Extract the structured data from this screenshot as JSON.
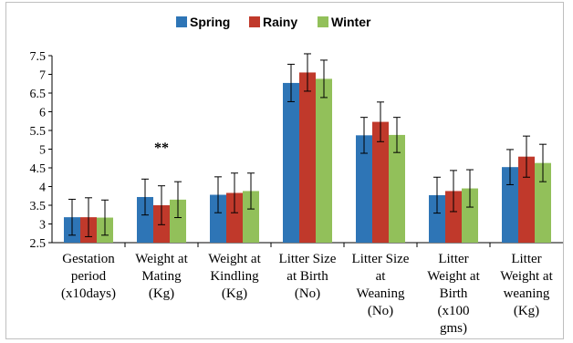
{
  "chart_data": {
    "type": "bar",
    "categories": [
      [
        "Gestation",
        "period",
        "(x10days)"
      ],
      [
        "Weight at",
        "Mating",
        "(Kg)"
      ],
      [
        "Weight at",
        "Kindling",
        "(Kg)"
      ],
      [
        "Litter Size",
        "at Birth",
        "(No)"
      ],
      [
        "Litter Size",
        "at",
        "Weaning",
        "(No)"
      ],
      [
        "Litter",
        "Weight at",
        "Birth",
        "(x100",
        "gms)"
      ],
      [
        "Litter",
        "Weight at",
        "weaning",
        "(Kg)"
      ]
    ],
    "series": [
      {
        "name": "Spring",
        "color": "#2e75b6",
        "values": [
          3.18,
          3.72,
          3.78,
          6.77,
          5.37,
          3.77,
          4.52
        ],
        "errors": [
          0.48,
          0.48,
          0.48,
          0.5,
          0.48,
          0.48,
          0.47
        ]
      },
      {
        "name": "Rainy",
        "color": "#c0392b",
        "values": [
          3.18,
          3.5,
          3.83,
          7.05,
          5.73,
          3.88,
          4.8
        ],
        "errors": [
          0.52,
          0.52,
          0.53,
          0.5,
          0.53,
          0.55,
          0.55
        ]
      },
      {
        "name": "Winter",
        "color": "#92c05a",
        "values": [
          3.17,
          3.65,
          3.88,
          6.88,
          5.38,
          3.95,
          4.63
        ],
        "errors": [
          0.47,
          0.48,
          0.48,
          0.5,
          0.47,
          0.5,
          0.5
        ]
      }
    ],
    "ylim": [
      2.5,
      7.5
    ],
    "yticks": [
      "2.5",
      "3",
      "3.5",
      "4",
      "4.5",
      "5",
      "5.5",
      "6",
      "6.5",
      "7",
      "7.5"
    ],
    "legend_position": "top-center",
    "annotations": [
      {
        "text": "**",
        "category_index": 1
      }
    ]
  }
}
